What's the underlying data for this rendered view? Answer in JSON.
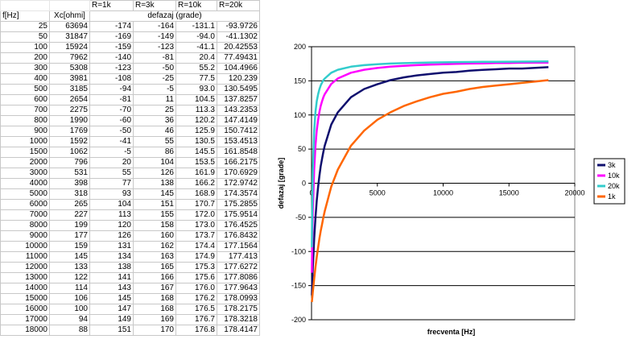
{
  "table": {
    "r_headers": [
      "R=1k",
      "R=3k",
      "R=10k",
      "R=20k"
    ],
    "col_f": "f[Hz]",
    "col_xc": "Xc[ohmi]",
    "defazaj_header": "defazaj (grade)",
    "rows": [
      [
        "25",
        "63694",
        "-174",
        "-164",
        "-131.1",
        "-93.9726"
      ],
      [
        "50",
        "31847",
        "-169",
        "-149",
        "-94.0",
        "-41.1302"
      ],
      [
        "100",
        "15924",
        "-159",
        "-123",
        "-41.1",
        "20.42553"
      ],
      [
        "200",
        "7962",
        "-140",
        "-81",
        "20.4",
        "77.49431"
      ],
      [
        "300",
        "5308",
        "-123",
        "-50",
        "55.2",
        "104.4966"
      ],
      [
        "400",
        "3981",
        "-108",
        "-25",
        "77.5",
        "120.239"
      ],
      [
        "500",
        "3185",
        "-94",
        "-5",
        "93.0",
        "130.5495"
      ],
      [
        "600",
        "2654",
        "-81",
        "11",
        "104.5",
        "137.8257"
      ],
      [
        "700",
        "2275",
        "-70",
        "25",
        "113.3",
        "143.2353"
      ],
      [
        "800",
        "1990",
        "-60",
        "36",
        "120.2",
        "147.4149"
      ],
      [
        "900",
        "1769",
        "-50",
        "46",
        "125.9",
        "150.7412"
      ],
      [
        "1000",
        "1592",
        "-41",
        "55",
        "130.5",
        "153.4513"
      ],
      [
        "1500",
        "1062",
        "-5",
        "86",
        "145.5",
        "161.8548"
      ],
      [
        "2000",
        "796",
        "20",
        "104",
        "153.5",
        "166.2175"
      ],
      [
        "3000",
        "531",
        "55",
        "126",
        "161.9",
        "170.6929"
      ],
      [
        "4000",
        "398",
        "77",
        "138",
        "166.2",
        "172.9742"
      ],
      [
        "5000",
        "318",
        "93",
        "145",
        "168.9",
        "174.3574"
      ],
      [
        "6000",
        "265",
        "104",
        "151",
        "170.7",
        "175.2855"
      ],
      [
        "7000",
        "227",
        "113",
        "155",
        "172.0",
        "175.9514"
      ],
      [
        "8000",
        "199",
        "120",
        "158",
        "173.0",
        "176.4525"
      ],
      [
        "9000",
        "177",
        "126",
        "160",
        "173.7",
        "176.8432"
      ],
      [
        "10000",
        "159",
        "131",
        "162",
        "174.4",
        "177.1564"
      ],
      [
        "11000",
        "145",
        "134",
        "163",
        "174.9",
        "177.413"
      ],
      [
        "12000",
        "133",
        "138",
        "165",
        "175.3",
        "177.6272"
      ],
      [
        "13000",
        "122",
        "141",
        "166",
        "175.6",
        "177.8086"
      ],
      [
        "14000",
        "114",
        "143",
        "167",
        "176.0",
        "177.9643"
      ],
      [
        "15000",
        "106",
        "145",
        "168",
        "176.2",
        "178.0993"
      ],
      [
        "16000",
        "100",
        "147",
        "168",
        "176.5",
        "178.2175"
      ],
      [
        "17000",
        "94",
        "149",
        "169",
        "176.7",
        "178.3218"
      ],
      [
        "18000",
        "88",
        "151",
        "170",
        "176.8",
        "178.4147"
      ]
    ]
  },
  "chart_data": {
    "type": "line",
    "xlabel": "frecventa [Hz]",
    "ylabel": "defazaj [grade]",
    "xlim": [
      0,
      20000
    ],
    "ylim": [
      -200,
      200
    ],
    "xticks": [
      0,
      5000,
      10000,
      15000,
      20000
    ],
    "yticks": [
      -200,
      -150,
      -100,
      -50,
      0,
      50,
      100,
      150,
      200
    ],
    "grid": "horizontal",
    "legend_position": "right",
    "x": [
      25,
      50,
      100,
      200,
      300,
      400,
      500,
      600,
      700,
      800,
      900,
      1000,
      1500,
      2000,
      3000,
      4000,
      5000,
      6000,
      7000,
      8000,
      9000,
      10000,
      11000,
      12000,
      13000,
      14000,
      15000,
      16000,
      17000,
      18000
    ],
    "series": [
      {
        "name": "3k",
        "color": "#0f0f6e",
        "values": [
          -164,
          -149,
          -123,
          -81,
          -50,
          -25,
          -5,
          11,
          25,
          36,
          46,
          55,
          86,
          104,
          126,
          138,
          145,
          151,
          155,
          158,
          160,
          162,
          163,
          165,
          166,
          167,
          168,
          168,
          169,
          170
        ]
      },
      {
        "name": "10k",
        "color": "#ff00ff",
        "values": [
          -131.1,
          -94.0,
          -41.1,
          20.4,
          55.2,
          77.5,
          93.0,
          104.5,
          113.3,
          120.2,
          125.9,
          130.5,
          145.5,
          153.5,
          161.9,
          166.2,
          168.9,
          170.7,
          172.0,
          173.0,
          173.7,
          174.4,
          174.9,
          175.3,
          175.6,
          176.0,
          176.2,
          176.5,
          176.7,
          176.8
        ]
      },
      {
        "name": "20k",
        "color": "#33cccc",
        "values": [
          -93.9726,
          -41.1302,
          20.42553,
          77.49431,
          104.4966,
          120.239,
          130.5495,
          137.8257,
          143.2353,
          147.4149,
          150.7412,
          153.4513,
          161.8548,
          166.2175,
          170.6929,
          172.9742,
          174.3574,
          175.2855,
          175.9514,
          176.4525,
          176.8432,
          177.1564,
          177.413,
          177.6272,
          177.8086,
          177.9643,
          178.0993,
          178.2175,
          178.3218,
          178.4147
        ]
      },
      {
        "name": "1k",
        "color": "#ff6600",
        "values": [
          -174,
          -169,
          -159,
          -140,
          -123,
          -108,
          -94,
          -81,
          -70,
          -60,
          -50,
          -41,
          -5,
          20,
          55,
          77,
          93,
          104,
          113,
          120,
          126,
          131,
          134,
          138,
          141,
          143,
          145,
          147,
          149,
          151
        ]
      }
    ]
  }
}
